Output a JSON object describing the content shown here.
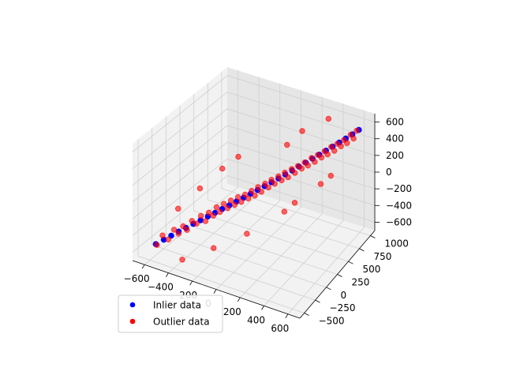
{
  "chart_data": {
    "type": "scatter",
    "projection": "3d",
    "grid": true,
    "legend_placement": "lower-left",
    "axes": {
      "x": {
        "ticks": [
          -600,
          -400,
          -200,
          0,
          200,
          400,
          600
        ],
        "tick_labels": [
          "−600",
          "−400",
          "−200",
          "0",
          "200",
          "400",
          "600"
        ],
        "range": [
          -700,
          700
        ]
      },
      "y": {
        "ticks": [
          -500,
          -250,
          0,
          250,
          500,
          750,
          1000
        ],
        "tick_labels": [
          "−500",
          "−250",
          "0",
          "250",
          "500",
          "750",
          "1000"
        ],
        "range": [
          -600,
          1100
        ]
      },
      "z": {
        "ticks": [
          -600,
          -400,
          -200,
          0,
          200,
          400,
          600
        ],
        "tick_labels": [
          "−600",
          "−400",
          "−200",
          "0",
          "200",
          "400",
          "600"
        ],
        "range": [
          -700,
          700
        ]
      }
    },
    "series": [
      {
        "name": "Inlier data",
        "color": "#0000ff",
        "points": [
          [
            -560,
            -480,
            -500
          ],
          [
            -520,
            -420,
            -460
          ],
          [
            -480,
            -370,
            -420
          ],
          [
            -440,
            -320,
            -380
          ],
          [
            -400,
            -270,
            -345
          ],
          [
            -360,
            -220,
            -305
          ],
          [
            -320,
            -170,
            -270
          ],
          [
            -280,
            -120,
            -235
          ],
          [
            -240,
            -70,
            -200
          ],
          [
            -200,
            -20,
            -165
          ],
          [
            -160,
            30,
            -130
          ],
          [
            -120,
            80,
            -95
          ],
          [
            -80,
            130,
            -60
          ],
          [
            -40,
            180,
            -25
          ],
          [
            0,
            230,
            10
          ],
          [
            40,
            280,
            45
          ],
          [
            80,
            330,
            80
          ],
          [
            120,
            380,
            115
          ],
          [
            160,
            430,
            150
          ],
          [
            200,
            480,
            185
          ],
          [
            240,
            530,
            220
          ],
          [
            280,
            580,
            255
          ],
          [
            320,
            630,
            290
          ],
          [
            360,
            680,
            325
          ],
          [
            400,
            730,
            360
          ],
          [
            440,
            780,
            395
          ],
          [
            480,
            830,
            430
          ],
          [
            520,
            880,
            465
          ],
          [
            560,
            930,
            500
          ],
          [
            600,
            980,
            540
          ]
        ]
      },
      {
        "name": "Outlier data",
        "color": "#ff0000",
        "points": [
          [
            -560,
            -460,
            -520
          ],
          [
            -540,
            -400,
            -430
          ],
          [
            -500,
            -380,
            -470
          ],
          [
            -470,
            -340,
            -360
          ],
          [
            -450,
            -300,
            -420
          ],
          [
            -420,
            -280,
            -330
          ],
          [
            -400,
            -250,
            -380
          ],
          [
            -380,
            -200,
            -290
          ],
          [
            -350,
            -180,
            -320
          ],
          [
            -330,
            -140,
            -240
          ],
          [
            -300,
            -120,
            -300
          ],
          [
            -280,
            -100,
            -200
          ],
          [
            -260,
            -60,
            -250
          ],
          [
            -240,
            -40,
            -150
          ],
          [
            -220,
            -20,
            -210
          ],
          [
            -200,
            10,
            -120
          ],
          [
            -180,
            40,
            -180
          ],
          [
            -160,
            60,
            -90
          ],
          [
            -140,
            90,
            -150
          ],
          [
            -120,
            110,
            -60
          ],
          [
            -100,
            130,
            -120
          ],
          [
            -80,
            160,
            -40
          ],
          [
            -60,
            180,
            -90
          ],
          [
            -40,
            200,
            0
          ],
          [
            -20,
            220,
            -60
          ],
          [
            0,
            240,
            40
          ],
          [
            20,
            260,
            -20
          ],
          [
            40,
            290,
            70
          ],
          [
            60,
            310,
            20
          ],
          [
            80,
            330,
            110
          ],
          [
            100,
            350,
            60
          ],
          [
            120,
            380,
            140
          ],
          [
            140,
            400,
            90
          ],
          [
            160,
            420,
            180
          ],
          [
            180,
            440,
            120
          ],
          [
            200,
            470,
            210
          ],
          [
            220,
            490,
            160
          ],
          [
            240,
            510,
            240
          ],
          [
            260,
            540,
            200
          ],
          [
            280,
            560,
            270
          ],
          [
            300,
            580,
            230
          ],
          [
            320,
            610,
            310
          ],
          [
            340,
            630,
            260
          ],
          [
            360,
            650,
            340
          ],
          [
            380,
            680,
            300
          ],
          [
            400,
            700,
            370
          ],
          [
            420,
            720,
            330
          ],
          [
            440,
            750,
            410
          ],
          [
            460,
            770,
            360
          ],
          [
            480,
            790,
            440
          ],
          [
            500,
            820,
            400
          ],
          [
            520,
            840,
            470
          ],
          [
            540,
            860,
            430
          ],
          [
            560,
            890,
            520
          ],
          [
            580,
            910,
            470
          ],
          [
            600,
            930,
            560
          ],
          [
            -500,
            -200,
            -200
          ],
          [
            -300,
            200,
            150
          ],
          [
            -150,
            -300,
            -450
          ],
          [
            100,
            600,
            380
          ],
          [
            250,
            200,
            -120
          ],
          [
            350,
            900,
            620
          ],
          [
            -450,
            100,
            -100
          ],
          [
            50,
            -100,
            -300
          ],
          [
            450,
            500,
            120
          ],
          [
            -250,
            400,
            200
          ],
          [
            150,
            800,
            450
          ],
          [
            -350,
            -450,
            -600
          ],
          [
            300,
            300,
            -50
          ],
          [
            500,
            600,
            180
          ]
        ]
      }
    ]
  },
  "legend": {
    "items": [
      {
        "label": "Inlier data",
        "color": "#0000ff"
      },
      {
        "label": "Outlier data",
        "color": "#ff0000"
      }
    ]
  }
}
